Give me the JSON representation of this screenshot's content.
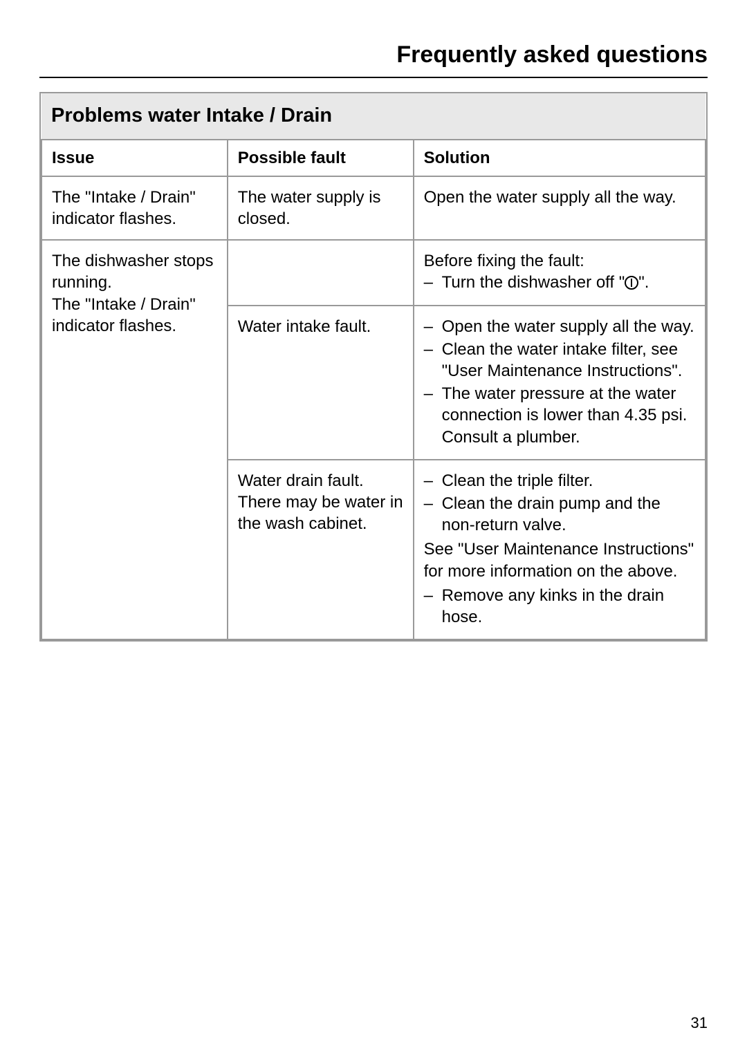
{
  "page": {
    "title": "Frequently asked questions",
    "number": "31"
  },
  "section": {
    "heading": "Problems water Intake / Drain",
    "columns": {
      "issue": "Issue",
      "fault": "Possible fault",
      "solution": "Solution"
    },
    "rows": {
      "r1": {
        "issue": "The \"Intake / Drain\" indicator flashes.",
        "fault": "The water supply is closed.",
        "solution": "Open the water supply all the way."
      },
      "r2": {
        "issue": "The dishwasher stops running.\nThe \"Intake / Drain\" indicator flashes.",
        "sub1": {
          "fault": "",
          "solution_intro": "Before fixing the fault:",
          "solution_item1_a": "Turn the dishwasher off \"",
          "solution_item1_b": "\"."
        },
        "sub2": {
          "fault": "Water intake fault.",
          "solution_item1": "Open the water supply all the way.",
          "solution_item2": "Clean the water intake filter, see \"User Maintenance Instructions\".",
          "solution_item3": "The water pressure at the water connection is lower than 4.35 psi. Consult a plumber."
        },
        "sub3": {
          "fault": "Water drain fault.\nThere may be water in the wash cabinet.",
          "solution_item1": "Clean the triple filter.",
          "solution_item2": "Clean the drain pump and the non-return valve.",
          "solution_note": "See \"User Maintenance Instructions\" for more information on the above.",
          "solution_item3": "Remove any kinks in the drain hose."
        }
      }
    }
  }
}
